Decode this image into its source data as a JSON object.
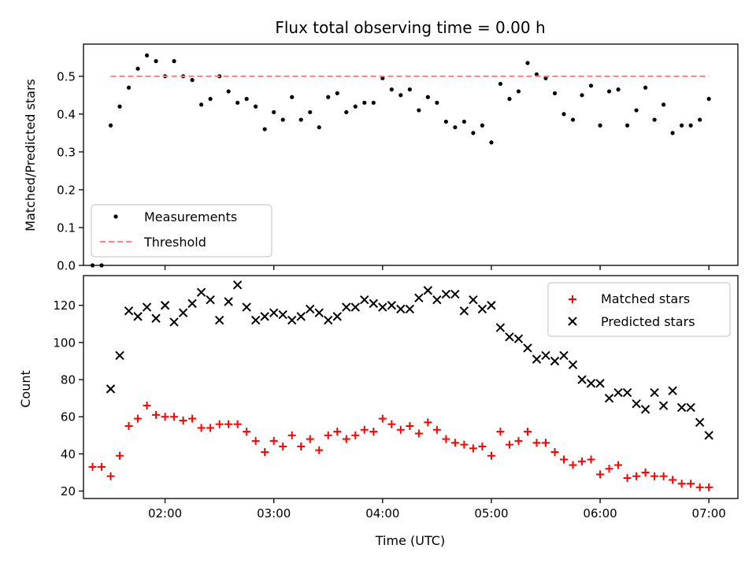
{
  "chart_data": [
    {
      "type": "scatter",
      "title": "Flux total observing time = 0.00 h",
      "xlabel": "",
      "ylabel": "Matched/Predicted stars",
      "xlim": [
        "01:15",
        "07:16"
      ],
      "ylim": [
        0,
        0.585
      ],
      "yticks": [
        "0.0",
        "0.1",
        "0.2",
        "0.3",
        "0.4",
        "0.5"
      ],
      "legend_position": "lower-left",
      "grid": false,
      "series": [
        {
          "name": "Measurements",
          "marker": "dot",
          "color": "#000000",
          "points": [
            [
              "01:20",
              0.0
            ],
            [
              "01:25",
              0.0
            ],
            [
              "01:30",
              0.37
            ],
            [
              "01:35",
              0.42
            ],
            [
              "01:40",
              0.47
            ],
            [
              "01:45",
              0.52
            ],
            [
              "01:50",
              0.555
            ],
            [
              "01:55",
              0.54
            ],
            [
              "02:00",
              0.5
            ],
            [
              "02:05",
              0.54
            ],
            [
              "02:10",
              0.5
            ],
            [
              "02:15",
              0.49
            ],
            [
              "02:20",
              0.425
            ],
            [
              "02:25",
              0.44
            ],
            [
              "02:30",
              0.5
            ],
            [
              "02:35",
              0.46
            ],
            [
              "02:40",
              0.43
            ],
            [
              "02:45",
              0.44
            ],
            [
              "02:50",
              0.42
            ],
            [
              "02:55",
              0.36
            ],
            [
              "03:00",
              0.405
            ],
            [
              "03:05",
              0.385
            ],
            [
              "03:10",
              0.445
            ],
            [
              "03:15",
              0.385
            ],
            [
              "03:20",
              0.405
            ],
            [
              "03:25",
              0.365
            ],
            [
              "03:30",
              0.445
            ],
            [
              "03:35",
              0.455
            ],
            [
              "03:40",
              0.405
            ],
            [
              "03:45",
              0.42
            ],
            [
              "03:50",
              0.43
            ],
            [
              "03:55",
              0.43
            ],
            [
              "04:00",
              0.495
            ],
            [
              "04:05",
              0.465
            ],
            [
              "04:10",
              0.45
            ],
            [
              "04:15",
              0.465
            ],
            [
              "04:20",
              0.41
            ],
            [
              "04:25",
              0.445
            ],
            [
              "04:30",
              0.43
            ],
            [
              "04:35",
              0.38
            ],
            [
              "04:40",
              0.365
            ],
            [
              "04:45",
              0.38
            ],
            [
              "04:50",
              0.35
            ],
            [
              "04:55",
              0.37
            ],
            [
              "05:00",
              0.325
            ],
            [
              "05:05",
              0.48
            ],
            [
              "05:10",
              0.44
            ],
            [
              "05:15",
              0.46
            ],
            [
              "05:20",
              0.535
            ],
            [
              "05:25",
              0.505
            ],
            [
              "05:30",
              0.495
            ],
            [
              "05:35",
              0.455
            ],
            [
              "05:40",
              0.4
            ],
            [
              "05:45",
              0.385
            ],
            [
              "05:50",
              0.45
            ],
            [
              "05:55",
              0.475
            ],
            [
              "06:00",
              0.37
            ],
            [
              "06:05",
              0.46
            ],
            [
              "06:10",
              0.465
            ],
            [
              "06:15",
              0.37
            ],
            [
              "06:20",
              0.41
            ],
            [
              "06:25",
              0.47
            ],
            [
              "06:30",
              0.385
            ],
            [
              "06:35",
              0.425
            ],
            [
              "06:40",
              0.35
            ],
            [
              "06:45",
              0.37
            ],
            [
              "06:50",
              0.37
            ],
            [
              "06:55",
              0.385
            ],
            [
              "07:00",
              0.44
            ]
          ]
        },
        {
          "name": "Threshold",
          "marker": "dashed-line",
          "color": "#ff7f7f",
          "points": [
            [
              "01:30",
              0.5
            ],
            [
              "07:00",
              0.5
            ]
          ]
        }
      ]
    },
    {
      "type": "scatter",
      "title": "",
      "xlabel": "Time (UTC)",
      "ylabel": "Count",
      "xlim": [
        "01:15",
        "07:16"
      ],
      "ylim": [
        16,
        136
      ],
      "yticks": [
        "20",
        "40",
        "60",
        "80",
        "100",
        "120"
      ],
      "xticks": [
        "02:00",
        "03:00",
        "04:00",
        "05:00",
        "06:00",
        "07:00"
      ],
      "legend_position": "top-right",
      "grid": false,
      "series": [
        {
          "name": "Matched stars",
          "marker": "plus",
          "color": "#ff0000",
          "points": [
            [
              "01:20",
              33
            ],
            [
              "01:25",
              33
            ],
            [
              "01:30",
              28
            ],
            [
              "01:35",
              39
            ],
            [
              "01:40",
              55
            ],
            [
              "01:45",
              59
            ],
            [
              "01:50",
              66
            ],
            [
              "01:55",
              61
            ],
            [
              "02:00",
              60
            ],
            [
              "02:05",
              60
            ],
            [
              "02:10",
              58
            ],
            [
              "02:15",
              59
            ],
            [
              "02:20",
              54
            ],
            [
              "02:25",
              54
            ],
            [
              "02:30",
              56
            ],
            [
              "02:35",
              56
            ],
            [
              "02:40",
              56
            ],
            [
              "02:45",
              52
            ],
            [
              "02:50",
              47
            ],
            [
              "02:55",
              41
            ],
            [
              "03:00",
              47
            ],
            [
              "03:05",
              44
            ],
            [
              "03:10",
              50
            ],
            [
              "03:15",
              44
            ],
            [
              "03:20",
              48
            ],
            [
              "03:25",
              42
            ],
            [
              "03:30",
              50
            ],
            [
              "03:35",
              52
            ],
            [
              "03:40",
              48
            ],
            [
              "03:45",
              50
            ],
            [
              "03:50",
              53
            ],
            [
              "03:55",
              52
            ],
            [
              "04:00",
              59
            ],
            [
              "04:05",
              56
            ],
            [
              "04:10",
              53
            ],
            [
              "04:15",
              55
            ],
            [
              "04:20",
              51
            ],
            [
              "04:25",
              57
            ],
            [
              "04:30",
              53
            ],
            [
              "04:35",
              48
            ],
            [
              "04:40",
              46
            ],
            [
              "04:45",
              45
            ],
            [
              "04:50",
              43
            ],
            [
              "04:55",
              44
            ],
            [
              "05:00",
              39
            ],
            [
              "05:05",
              52
            ],
            [
              "05:10",
              45
            ],
            [
              "05:15",
              47
            ],
            [
              "05:20",
              52
            ],
            [
              "05:25",
              46
            ],
            [
              "05:30",
              46
            ],
            [
              "05:35",
              41
            ],
            [
              "05:40",
              37
            ],
            [
              "05:45",
              34
            ],
            [
              "05:50",
              36
            ],
            [
              "05:55",
              37
            ],
            [
              "06:00",
              29
            ],
            [
              "06:05",
              32
            ],
            [
              "06:10",
              34
            ],
            [
              "06:15",
              27
            ],
            [
              "06:20",
              28
            ],
            [
              "06:25",
              30
            ],
            [
              "06:30",
              28
            ],
            [
              "06:35",
              28
            ],
            [
              "06:40",
              26
            ],
            [
              "06:45",
              24
            ],
            [
              "06:50",
              24
            ],
            [
              "06:55",
              22
            ],
            [
              "07:00",
              22
            ]
          ]
        },
        {
          "name": "Predicted stars",
          "marker": "x",
          "color": "#000000",
          "points": [
            [
              "01:30",
              75
            ],
            [
              "01:35",
              93
            ],
            [
              "01:40",
              117
            ],
            [
              "01:45",
              114
            ],
            [
              "01:50",
              119
            ],
            [
              "01:55",
              113
            ],
            [
              "02:00",
              120
            ],
            [
              "02:05",
              111
            ],
            [
              "02:10",
              116
            ],
            [
              "02:15",
              121
            ],
            [
              "02:20",
              127
            ],
            [
              "02:25",
              123
            ],
            [
              "02:30",
              112
            ],
            [
              "02:35",
              122
            ],
            [
              "02:40",
              131
            ],
            [
              "02:45",
              119
            ],
            [
              "02:50",
              112
            ],
            [
              "02:55",
              114
            ],
            [
              "03:00",
              116
            ],
            [
              "03:05",
              115
            ],
            [
              "03:10",
              112
            ],
            [
              "03:15",
              114
            ],
            [
              "03:20",
              118
            ],
            [
              "03:25",
              116
            ],
            [
              "03:30",
              112
            ],
            [
              "03:35",
              114
            ],
            [
              "03:40",
              119
            ],
            [
              "03:45",
              119
            ],
            [
              "03:50",
              123
            ],
            [
              "03:55",
              121
            ],
            [
              "04:00",
              119
            ],
            [
              "04:05",
              120
            ],
            [
              "04:10",
              118
            ],
            [
              "04:15",
              118
            ],
            [
              "04:20",
              124
            ],
            [
              "04:25",
              128
            ],
            [
              "04:30",
              123
            ],
            [
              "04:35",
              126
            ],
            [
              "04:40",
              126
            ],
            [
              "04:45",
              117
            ],
            [
              "04:50",
              123
            ],
            [
              "04:55",
              118
            ],
            [
              "05:00",
              120
            ],
            [
              "05:05",
              108
            ],
            [
              "05:10",
              103
            ],
            [
              "05:15",
              102
            ],
            [
              "05:20",
              97
            ],
            [
              "05:25",
              91
            ],
            [
              "05:30",
              93
            ],
            [
              "05:35",
              90
            ],
            [
              "05:40",
              93
            ],
            [
              "05:45",
              88
            ],
            [
              "05:50",
              80
            ],
            [
              "05:55",
              78
            ],
            [
              "06:00",
              78
            ],
            [
              "06:05",
              70
            ],
            [
              "06:10",
              73
            ],
            [
              "06:15",
              73
            ],
            [
              "06:20",
              67
            ],
            [
              "06:25",
              64
            ],
            [
              "06:30",
              73
            ],
            [
              "06:35",
              66
            ],
            [
              "06:40",
              74
            ],
            [
              "06:45",
              65
            ],
            [
              "06:50",
              65
            ],
            [
              "06:55",
              57
            ],
            [
              "07:00",
              50
            ]
          ]
        }
      ]
    }
  ]
}
